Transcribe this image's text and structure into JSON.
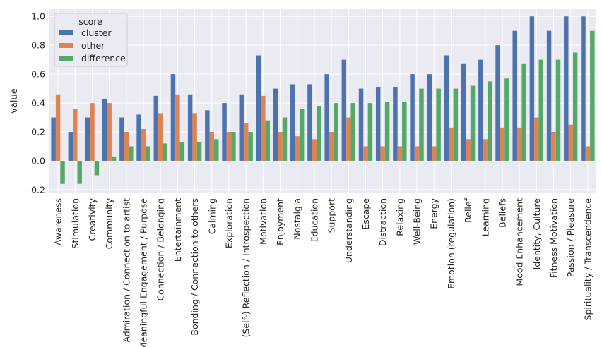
{
  "chart_data": {
    "type": "bar",
    "xlabel": "",
    "ylabel": "value",
    "ylim": [
      -0.22,
      1.05
    ],
    "yticks": [
      -0.2,
      0.0,
      0.2,
      0.4,
      0.6,
      0.8,
      1.0
    ],
    "ytick_labels": [
      "−0.2",
      "0.0",
      "0.2",
      "0.4",
      "0.6",
      "0.8",
      "1.0"
    ],
    "grid": true,
    "legend": {
      "title": "score",
      "position": "top-left"
    },
    "categories": [
      "Awareness",
      "Stimulation",
      "Creativity",
      "Community",
      "Admiration / Connection to artist",
      "Meaningful Engagement / Purpose",
      "Connection / Belonging",
      "Entertainment",
      "Bonding / Connection to others",
      "Calming",
      "Exploration",
      "(Self-) Reflection / Introspection",
      "Motivation",
      "Enjoyment",
      "Nostalgia",
      "Education",
      "Support",
      "Understanding",
      "Escape",
      "Distraction",
      "Relaxing",
      "Well-Being",
      "Energy",
      "Emotion (regulation)",
      "Relief",
      "Learning",
      "Beliefs",
      "Mood Enhancement",
      "Identity, Culture",
      "Fitness Motivation",
      "Passion / Pleasure",
      "Spirituality / Transcendence"
    ],
    "series": [
      {
        "name": "cluster",
        "color": "#4c72b0",
        "values": [
          0.3,
          0.2,
          0.3,
          0.43,
          0.3,
          0.32,
          0.45,
          0.6,
          0.46,
          0.35,
          0.4,
          0.46,
          0.73,
          0.5,
          0.53,
          0.53,
          0.6,
          0.7,
          0.5,
          0.51,
          0.51,
          0.6,
          0.6,
          0.73,
          0.67,
          0.7,
          0.8,
          0.9,
          1.0,
          0.9,
          1.0,
          1.0
        ]
      },
      {
        "name": "other",
        "color": "#dd8452",
        "values": [
          0.46,
          0.36,
          0.4,
          0.4,
          0.2,
          0.22,
          0.33,
          0.46,
          0.33,
          0.2,
          0.2,
          0.26,
          0.45,
          0.2,
          0.17,
          0.15,
          0.2,
          0.3,
          0.1,
          0.1,
          0.1,
          0.1,
          0.1,
          0.23,
          0.15,
          0.15,
          0.23,
          0.23,
          0.3,
          0.2,
          0.25,
          0.1
        ]
      },
      {
        "name": "difference",
        "color": "#55a868",
        "values": [
          -0.16,
          -0.16,
          -0.1,
          0.03,
          0.1,
          0.1,
          0.12,
          0.13,
          0.13,
          0.15,
          0.2,
          0.2,
          0.28,
          0.3,
          0.36,
          0.38,
          0.4,
          0.4,
          0.4,
          0.41,
          0.41,
          0.5,
          0.5,
          0.5,
          0.52,
          0.55,
          0.57,
          0.67,
          0.7,
          0.7,
          0.75,
          0.9
        ]
      }
    ]
  }
}
